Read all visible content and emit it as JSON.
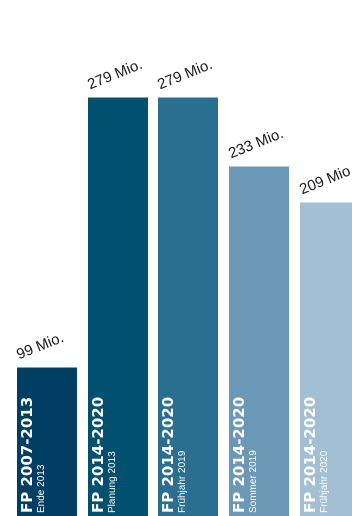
{
  "chart_data": {
    "type": "bar",
    "title": "",
    "xlabel": "",
    "ylabel": "",
    "ylim": [
      0,
      300
    ],
    "grid": false,
    "categories": [
      "FP 2007-2013",
      "FP 2014-2020",
      "FP 2014-2020",
      "FP 2014-2020",
      "FP 2014-2020"
    ],
    "sublabels": [
      "Ende 2013",
      "Planung 2013",
      "Frühjahr 2019",
      "Sommer 2019",
      "Frühjahr 2020"
    ],
    "values": [
      99,
      279,
      279,
      233,
      209
    ],
    "value_labels": [
      "99 Mio.",
      "279 Mio.",
      "279 Mio.",
      "233 Mio.",
      "209 Mio."
    ],
    "colors": [
      "#003f63",
      "#02506f",
      "#2a6f90",
      "#6b98b4",
      "#a3bfd3"
    ]
  }
}
